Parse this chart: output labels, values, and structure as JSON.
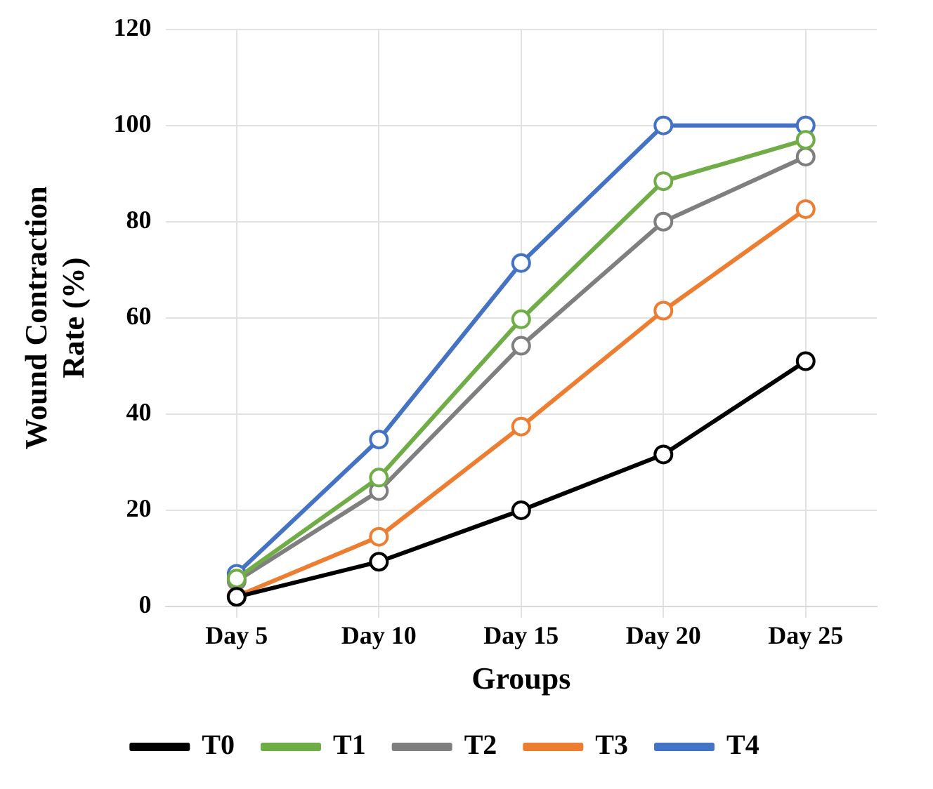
{
  "chart_data": {
    "type": "line",
    "xlabel": "Groups",
    "ylabel": "Wound Contraction Rate (%)",
    "categories": [
      "Day 5",
      "Day 10",
      "Day 15",
      "Day 20",
      "Day 25"
    ],
    "ylim": [
      0,
      120
    ],
    "yticks": [
      0,
      20,
      40,
      60,
      80,
      100,
      120
    ],
    "grid": true,
    "legend": "bottom",
    "marker": "circle",
    "line_style": "solid",
    "series": [
      {
        "name": "T0",
        "color": "#000000",
        "values": [
          2,
          9.3,
          20,
          31.6,
          51
        ]
      },
      {
        "name": "T1",
        "color": "#70ad47",
        "values": [
          5.8,
          26.8,
          59.7,
          88.4,
          97
        ]
      },
      {
        "name": "T2",
        "color": "#7f7f7f",
        "values": [
          5.3,
          24,
          54.2,
          80,
          93.5
        ]
      },
      {
        "name": "T3",
        "color": "#ed7d31",
        "values": [
          2.1,
          14.5,
          37.4,
          61.5,
          82.6
        ]
      },
      {
        "name": "T4",
        "color": "#4472c4",
        "values": [
          6.8,
          34.7,
          71.4,
          100,
          100
        ]
      }
    ]
  }
}
